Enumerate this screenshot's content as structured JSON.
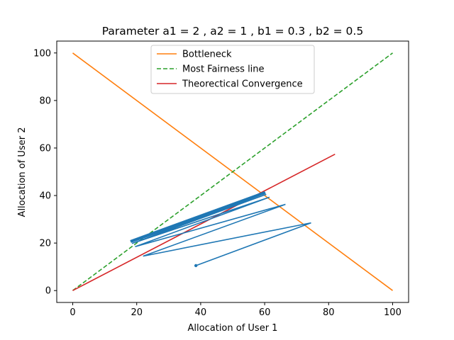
{
  "chart_data": {
    "type": "line",
    "title": "Parameter a1 = 2 , a2 = 1 , b1 = 0.3 , b2 = 0.5",
    "xlabel": "Allocation of User 1",
    "ylabel": "Allocation of User 2",
    "xlim": [
      -5,
      105
    ],
    "ylim": [
      -5,
      105
    ],
    "xticks": [
      0,
      20,
      40,
      60,
      80,
      100
    ],
    "yticks": [
      0,
      20,
      40,
      60,
      80,
      100
    ],
    "grid": false,
    "legend_position": "top-center",
    "series": [
      {
        "name": "Bottleneck",
        "color": "#ff7f0e",
        "style": "solid",
        "x": [
          0,
          100
        ],
        "y": [
          100,
          0
        ]
      },
      {
        "name": "Most Fairness line",
        "color": "#2ca02c",
        "style": "dashed",
        "x": [
          0,
          100
        ],
        "y": [
          0,
          100
        ]
      },
      {
        "name": "Theorectical Convergence",
        "color": "#d62728",
        "style": "solid",
        "x": [
          0,
          82
        ],
        "y": [
          0,
          57.4
        ]
      }
    ],
    "trajectory": {
      "color": "#1f77b4",
      "start_marker": true,
      "x": [
        38.5,
        74.5,
        22.0,
        66.5,
        19.5,
        61.5,
        18.5,
        60.5,
        18.2,
        60.3,
        18.1,
        60.2,
        18.0,
        60.1,
        18.0,
        60.0
      ],
      "y": [
        10.5,
        28.5,
        14.5,
        36.3,
        18.5,
        39.3,
        19.8,
        40.5,
        20.3,
        41.0,
        20.6,
        41.3,
        20.8,
        41.5,
        21.0,
        41.6
      ]
    }
  }
}
